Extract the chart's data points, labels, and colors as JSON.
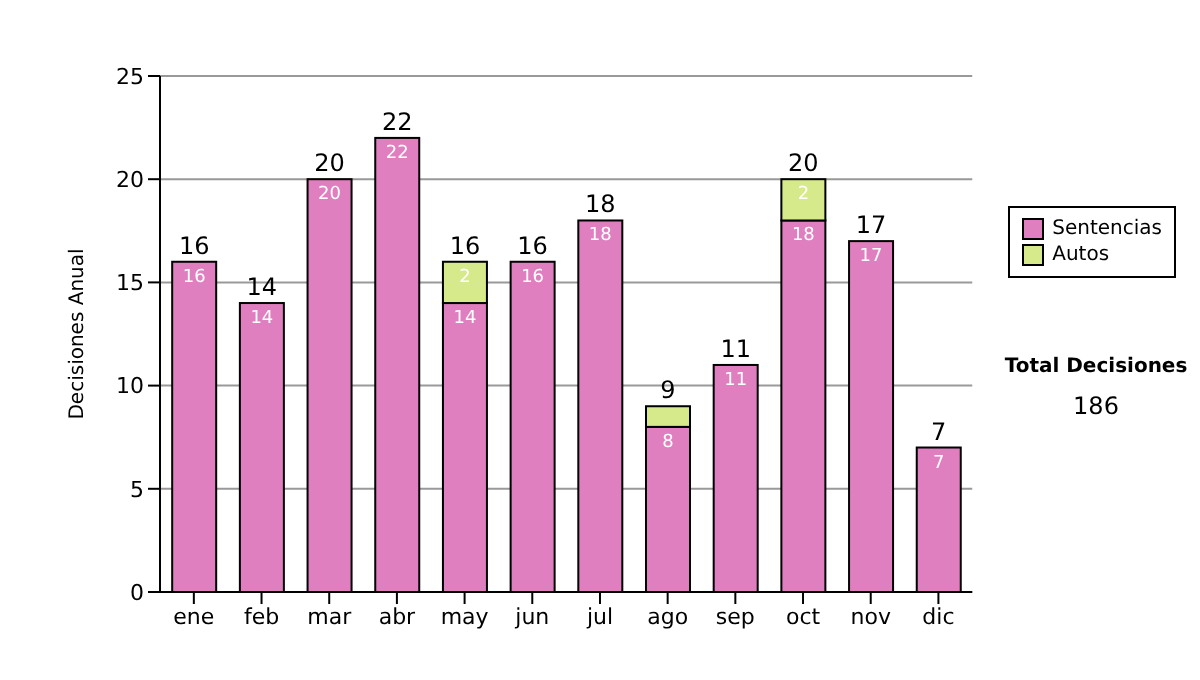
{
  "chart_data": {
    "type": "bar",
    "stacked": true,
    "ylabel": "Decisiones Anual",
    "categories": [
      "ene",
      "feb",
      "mar",
      "abr",
      "may",
      "jun",
      "jul",
      "ago",
      "sep",
      "oct",
      "nov",
      "dic"
    ],
    "series": [
      {
        "name": "Sentencias",
        "color": "#e07fc0",
        "values": [
          16,
          14,
          20,
          22,
          14,
          16,
          18,
          8,
          11,
          18,
          17,
          7
        ],
        "value_labels": [
          "16",
          "14",
          "20",
          "22",
          "14",
          "16",
          "18",
          "8",
          "11",
          "18",
          "17",
          "7"
        ]
      },
      {
        "name": "Autos",
        "color": "#d6ea8c",
        "values": [
          0,
          0,
          0,
          0,
          2,
          0,
          0,
          1,
          0,
          2,
          0,
          0
        ],
        "value_labels": [
          null,
          null,
          null,
          null,
          "2",
          null,
          null,
          null,
          null,
          "2",
          null,
          null
        ]
      }
    ],
    "totals": [
      "16",
      "14",
      "20",
      "22",
      "16",
      "16",
      "18",
      "9",
      "11",
      "20",
      "17",
      "7"
    ],
    "ylim": [
      0,
      25
    ],
    "yticks": [
      0,
      5,
      10,
      15,
      20,
      25
    ],
    "grid": "y",
    "legend": "right",
    "annotations": [
      "Total Decisiones",
      "186"
    ]
  }
}
